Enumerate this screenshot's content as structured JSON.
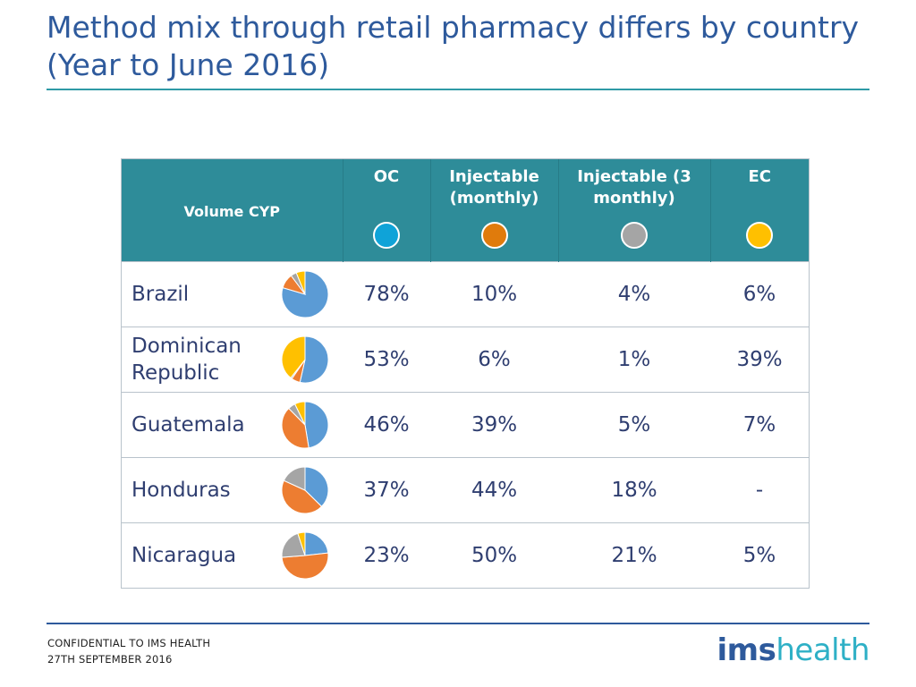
{
  "title": "Method mix through retail pharmacy differs by country (Year to June 2016)",
  "footer": {
    "line1": "CONFIDENTIAL TO IMS HEALTH",
    "line2": "27TH SEPTEMBER 2016",
    "logo_part1": "ims",
    "logo_part2": "health"
  },
  "colors": {
    "header_bg": "#2e8c99",
    "text": "#2f3e70",
    "title": "#2e5a9c"
  },
  "chart_data": {
    "type": "table",
    "title": "Method mix through retail pharmacy differs by country (Year to June 2016)",
    "row_header": "Volume CYP",
    "columns": [
      {
        "label": "OC",
        "color": "#0fa3d8",
        "pie_color": "#5b9bd5"
      },
      {
        "label": "Injectable (monthly)",
        "color": "#e07b0c",
        "pie_color": "#ed7d31"
      },
      {
        "label": "Injectable (3 monthly)",
        "color": "#a5a5a5",
        "pie_color": "#a5a5a5"
      },
      {
        "label": "EC",
        "color": "#ffc000",
        "pie_color": "#ffc000"
      }
    ],
    "rows": [
      {
        "country": "Brazil",
        "values": [
          78,
          10,
          4,
          6
        ],
        "labels": [
          "78%",
          "10%",
          "4%",
          "6%"
        ]
      },
      {
        "country": "Dominican Republic",
        "values": [
          53,
          6,
          1,
          39
        ],
        "labels": [
          "53%",
          "6%",
          "1%",
          "39%"
        ]
      },
      {
        "country": "Guatemala",
        "values": [
          46,
          39,
          5,
          7
        ],
        "labels": [
          "46%",
          "39%",
          "5%",
          "7%"
        ]
      },
      {
        "country": "Honduras",
        "values": [
          37,
          44,
          18,
          0
        ],
        "labels": [
          "37%",
          "44%",
          "18%",
          "-"
        ]
      },
      {
        "country": "Nicaragua",
        "values": [
          23,
          50,
          21,
          5
        ],
        "labels": [
          "23%",
          "50%",
          "21%",
          "5%"
        ]
      }
    ]
  }
}
